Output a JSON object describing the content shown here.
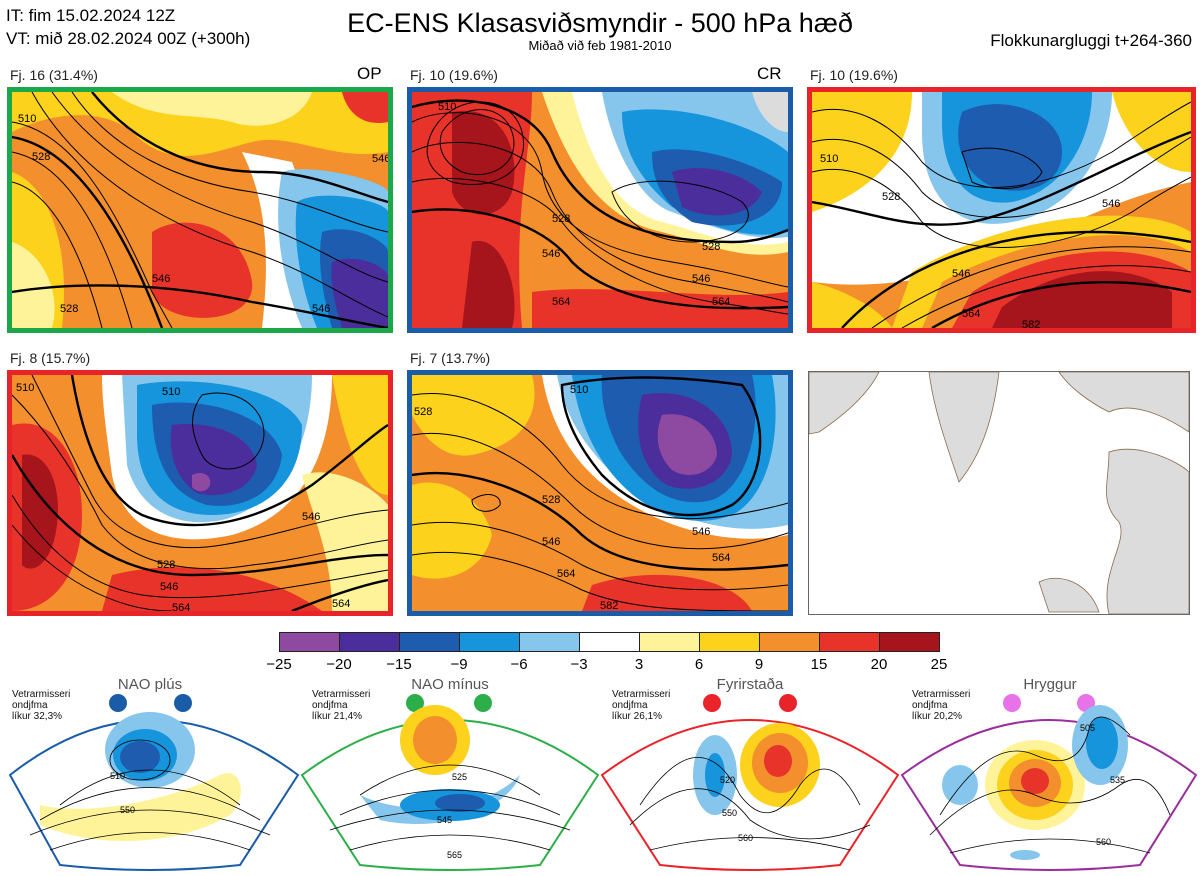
{
  "header": {
    "it_line": "IT: fim 15.02.2024 12Z",
    "vt_line": "VT: mið 28.02.2024 00Z  (+300h)",
    "title": "EC-ENS Klasasviðsmyndir - 500 hPa hæð",
    "subtitle": "Miðað við feb 1981-2010",
    "window": "Flokkunargluggi t+264-360"
  },
  "panels": [
    {
      "label": "Fj. 16 (31.4%)",
      "tag": "OP",
      "border": "#1aa84a",
      "contours": [
        "510",
        "528",
        "546",
        "528",
        "546",
        "546"
      ]
    },
    {
      "label": "Fj. 10 (19.6%)",
      "tag": "CR",
      "border": "#1a5ca8",
      "contours": [
        "510",
        "528",
        "546",
        "546",
        "564",
        "564",
        "528"
      ]
    },
    {
      "label": "Fj. 10 (19.6%)",
      "tag": "",
      "border": "#e8232a",
      "contours": [
        "510",
        "528",
        "546",
        "546",
        "564",
        "582"
      ]
    },
    {
      "label": "Fj. 8 (15.7%)",
      "tag": "",
      "border": "#e8232a",
      "contours": [
        "510",
        "510",
        "528",
        "546",
        "546",
        "564",
        "564"
      ]
    },
    {
      "label": "Fj. 7 (13.7%)",
      "tag": "",
      "border": "#1a5ca8",
      "contours": [
        "510",
        "528",
        "528",
        "546",
        "546",
        "564",
        "564",
        "582"
      ]
    }
  ],
  "colorbar": {
    "ticks": [
      "−25",
      "−20",
      "−15",
      "−9",
      "−6",
      "−3",
      "3",
      "6",
      "9",
      "15",
      "20",
      "25"
    ],
    "colors": [
      "#8e4aa0",
      "#4b2e9c",
      "#1e5cb0",
      "#1694dc",
      "#86c6ec",
      "#ffffff",
      "#fff39a",
      "#fcd21c",
      "#f38f2c",
      "#e8332a",
      "#a6141c"
    ]
  },
  "regimes": [
    {
      "title": "NAO plús",
      "note": [
        "Vetrarmisseri",
        "ondjfma",
        "líkur 32,3%"
      ],
      "color": "#1a5ca8",
      "labels": [
        "510",
        "550"
      ]
    },
    {
      "title": "NAO mínus",
      "note": [
        "Vetrarmisseri",
        "ondjfma",
        "líkur 21,4%"
      ],
      "color": "#2cae4a",
      "labels": [
        "525",
        "545",
        "565"
      ]
    },
    {
      "title": "Fyrirstaða",
      "note": [
        "Vetrarmisseri",
        "ondjfma",
        "líkur 26,1%"
      ],
      "color": "#e8232a",
      "labels": [
        "520",
        "550",
        "560"
      ]
    },
    {
      "title": "Hryggur",
      "note": [
        "Vetrarmisseri",
        "ondjfma",
        "líkur 20,2%"
      ],
      "color": "#9a2e9c",
      "labels": [
        "505",
        "535",
        "560"
      ]
    }
  ]
}
